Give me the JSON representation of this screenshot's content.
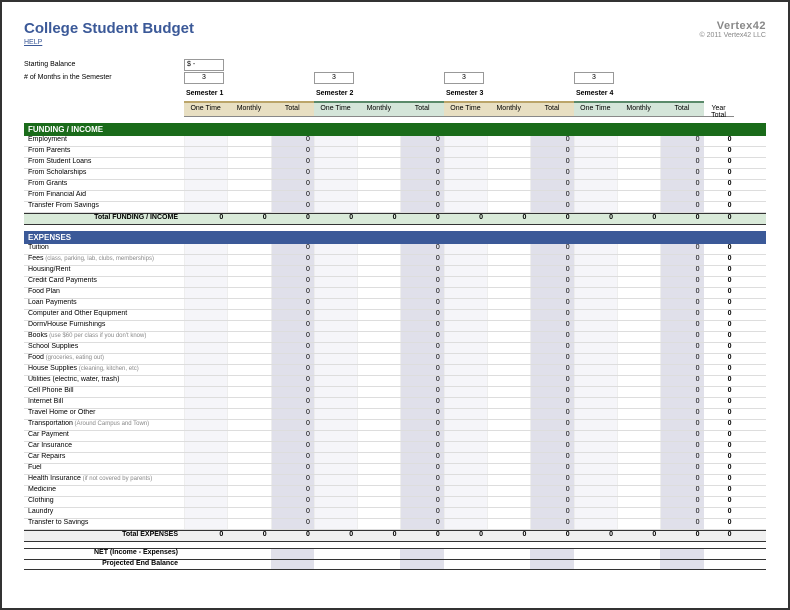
{
  "title": "College Student Budget",
  "help": "HELP",
  "logo": "Vertex42",
  "copyright": "© 2011 Vertex42 LLC",
  "starting_balance_label": "Starting Balance",
  "starting_balance_value": "$   -",
  "months_label": "# of Months in the Semester",
  "months": [
    "3",
    "3",
    "3",
    "3"
  ],
  "semesters": [
    "Semester 1",
    "Semester 2",
    "Semester 3",
    "Semester 4"
  ],
  "subcols": [
    "One Time",
    "Monthly",
    "Total"
  ],
  "year_total": "Year Total",
  "income_header": "FUNDING / INCOME",
  "income_items": [
    {
      "label": "Employment"
    },
    {
      "label": "From Parents"
    },
    {
      "label": "From Student Loans"
    },
    {
      "label": "From Scholarships"
    },
    {
      "label": "From Grants"
    },
    {
      "label": "From Financial Aid"
    },
    {
      "label": "Transfer From Savings"
    }
  ],
  "income_total_label": "Total FUNDING / INCOME",
  "expenses_header": "EXPENSES",
  "expense_items": [
    {
      "label": "Tuition"
    },
    {
      "label": "Fees",
      "sub": "(class, parking, lab, clubs, memberships)"
    },
    {
      "label": "Housing/Rent"
    },
    {
      "label": "Credit Card Payments"
    },
    {
      "label": "Food Plan"
    },
    {
      "label": "Loan Payments"
    },
    {
      "label": "Computer and Other Equipment"
    },
    {
      "label": "Dorm/House Furnishings"
    },
    {
      "label": "Books",
      "sub": "(use $60 per class if you don't know)"
    },
    {
      "label": "School Supplies"
    },
    {
      "label": "Food",
      "sub": "(groceries, eating out)"
    },
    {
      "label": "House Supplies",
      "sub": "(cleaning, kitchen, etc)"
    },
    {
      "label": "Utilities (electric, water, trash)"
    },
    {
      "label": "Cell Phone Bill"
    },
    {
      "label": "Internet Bill"
    },
    {
      "label": "Travel Home or Other"
    },
    {
      "label": "Transportation",
      "sub": "(Around Campus and Town)"
    },
    {
      "label": "Car Payment"
    },
    {
      "label": "Car Insurance"
    },
    {
      "label": "Car Repairs"
    },
    {
      "label": "Fuel"
    },
    {
      "label": "Health Insurance",
      "sub": "(if not covered by parents)"
    },
    {
      "label": "Medicine"
    },
    {
      "label": "Clothing"
    },
    {
      "label": "Laundry"
    },
    {
      "label": "Transfer to Savings"
    }
  ],
  "expenses_total_label": "Total EXPENSES",
  "net_label": "NET (Income - Expenses)",
  "proj_label": "Projected End Balance",
  "zero": "0",
  "colors": {
    "title": "#3b5998",
    "income_bg": "#1a6b1a",
    "expenses_bg": "#3b5998",
    "band1": "#e8dfc2",
    "band2": "#d4e5d9",
    "gray_cell": "#e0e0ea"
  }
}
